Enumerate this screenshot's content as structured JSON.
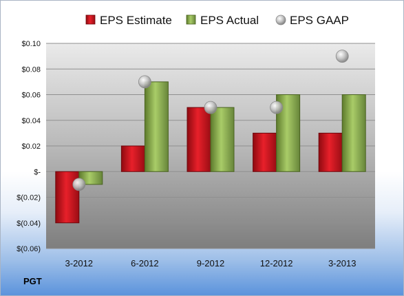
{
  "ticker": "PGT",
  "colors": {
    "estimate": "#c8141e",
    "actual": "#8ab04a",
    "gaap": "#a8a8a8"
  },
  "chart_data": {
    "type": "bar",
    "categories": [
      "3-2012",
      "6-2012",
      "9-2012",
      "12-2012",
      "3-2013"
    ],
    "series": [
      {
        "name": "EPS Estimate",
        "kind": "bar",
        "values": [
          -0.04,
          0.02,
          0.05,
          0.03,
          0.03
        ]
      },
      {
        "name": "EPS Actual",
        "kind": "bar",
        "values": [
          -0.01,
          0.07,
          0.05,
          0.06,
          0.06
        ]
      },
      {
        "name": "EPS GAAP",
        "kind": "scatter",
        "values": [
          -0.01,
          0.07,
          0.05,
          0.05,
          0.09
        ]
      }
    ],
    "ylim": [
      -0.06,
      0.1
    ],
    "yticks": [
      0.1,
      0.08,
      0.06,
      0.04,
      0.02,
      0,
      -0.02,
      -0.04,
      -0.06
    ],
    "ytick_labels": [
      "$0.10",
      "$0.08",
      "$0.06",
      "$0.04",
      "$0.02",
      "$-",
      "$(0.02)",
      "$(0.04)",
      "$(0.06)"
    ],
    "grid": true,
    "legend": "top"
  }
}
